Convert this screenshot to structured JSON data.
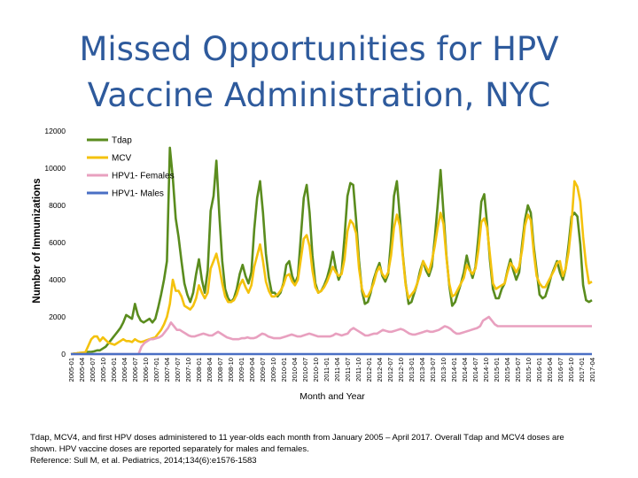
{
  "slide": {
    "title_line1": "Missed Opportunities for HPV",
    "title_line2": "Vaccine Administration, NYC",
    "footer_line1": "Tdap, MCV4, and first HPV doses administered to 11 year-olds each month from January 2005 – April 2017. Overall Tdap and MCV4 doses are",
    "footer_line2": "shown. HPV vaccine doses are reported separately for males and females.",
    "footer_line3": "Reference: Sull M, et al. Pediatrics, 2014;134(6):e1576-1583"
  },
  "chart_data": {
    "type": "line",
    "xlabel": "Month and Year",
    "ylabel": "Number of Immunizations",
    "ylim": [
      0,
      12000
    ],
    "yticks": [
      0,
      2000,
      4000,
      6000,
      8000,
      10000,
      12000
    ],
    "yticklabels": [
      "0",
      "2000",
      "4000",
      "6000",
      "8000",
      "10000",
      "12000"
    ],
    "x_tick_labels": [
      "2005-01",
      "2005-04",
      "2005-07",
      "2005-10",
      "2006-01",
      "2006-04",
      "2006-07",
      "2006-10",
      "2007-01",
      "2007-04",
      "2007-07",
      "2007-10",
      "2008-01",
      "2008-04",
      "2008-07",
      "2008-10",
      "2009-01",
      "2009-04",
      "2009-07",
      "2009-10",
      "2010-01",
      "2010-04",
      "2010-07",
      "2010-10",
      "2011-01",
      "2011-04",
      "2011-07",
      "2011-10",
      "2012-01",
      "2012-04",
      "2012-07",
      "2012-10",
      "2013-01",
      "2013-04",
      "2013-07",
      "2013-10",
      "2014-01",
      "2014-04",
      "2014-07",
      "2014-10",
      "2015-01",
      "2015-04",
      "2015-07",
      "2015-10",
      "2016-01",
      "2016-04",
      "2016-07",
      "2016-10",
      "2017-01",
      "2017-04"
    ],
    "legend": {
      "placement": "top-left"
    },
    "series": [
      {
        "name": "Tdap",
        "color": "#5A8C1E",
        "values": [
          0,
          20,
          40,
          60,
          60,
          80,
          120,
          120,
          150,
          200,
          200,
          300,
          400,
          600,
          800,
          1000,
          1200,
          1400,
          1700,
          2100,
          2000,
          1900,
          2700,
          2100,
          1800,
          1700,
          1800,
          1900,
          1700,
          1900,
          2500,
          3200,
          4000,
          5000,
          11100,
          9500,
          7300,
          6300,
          5000,
          3800,
          3200,
          2800,
          3300,
          4300,
          5100,
          4000,
          3300,
          4500,
          7700,
          8500,
          10400,
          7500,
          5000,
          3500,
          3000,
          2800,
          3000,
          3500,
          4300,
          4800,
          4200,
          3800,
          4400,
          6700,
          8400,
          9300,
          7600,
          5400,
          4100,
          3300,
          3300,
          3100,
          3300,
          3800,
          4800,
          5000,
          4200,
          3800,
          4200,
          6300,
          8400,
          9100,
          7600,
          5300,
          3800,
          3300,
          3400,
          3700,
          4100,
          4700,
          5500,
          4600,
          4000,
          4400,
          6300,
          8500,
          9200,
          9100,
          7200,
          5000,
          3400,
          2700,
          2800,
          3300,
          4000,
          4500,
          4900,
          4200,
          3900,
          4300,
          6100,
          8500,
          9300,
          7400,
          5400,
          3800,
          2700,
          2800,
          3300,
          3800,
          4500,
          5000,
          4500,
          4200,
          4700,
          6200,
          8000,
          9900,
          7600,
          5300,
          3700,
          2600,
          2800,
          3300,
          3800,
          4400,
          5300,
          4600,
          4100,
          4700,
          6300,
          8200,
          8600,
          7000,
          5000,
          3500,
          3000,
          3000,
          3500,
          3800,
          4500,
          5100,
          4500,
          4000,
          4400,
          5900,
          7200,
          8000,
          7600,
          5800,
          4500,
          3200,
          3000,
          3100,
          3600,
          4200,
          4600,
          5000,
          4400,
          4000,
          4600,
          5900,
          7400,
          7600,
          7400,
          5900,
          3700,
          2900,
          2800,
          2900
        ]
      },
      {
        "name": "MCV",
        "color": "#F4C20D",
        "values": [
          0,
          20,
          40,
          60,
          80,
          100,
          450,
          800,
          950,
          950,
          700,
          900,
          750,
          600,
          550,
          500,
          600,
          700,
          800,
          700,
          700,
          650,
          800,
          700,
          650,
          680,
          750,
          800,
          850,
          900,
          1100,
          1300,
          1600,
          2000,
          2700,
          4000,
          3400,
          3400,
          3100,
          2600,
          2500,
          2400,
          2600,
          3000,
          3700,
          3300,
          3000,
          3300,
          4600,
          5000,
          5400,
          4700,
          3800,
          3100,
          2800,
          2800,
          2900,
          3200,
          3700,
          4000,
          3600,
          3300,
          3700,
          4700,
          5300,
          5900,
          5000,
          3900,
          3400,
          3100,
          3100,
          3200,
          3400,
          3700,
          4200,
          4300,
          3900,
          3700,
          4000,
          5100,
          6200,
          6400,
          5800,
          4500,
          3600,
          3300,
          3400,
          3600,
          3900,
          4300,
          4700,
          4400,
          4200,
          4300,
          5100,
          6600,
          7200,
          7000,
          6500,
          4600,
          3500,
          3100,
          3100,
          3400,
          3800,
          4400,
          4700,
          4300,
          4100,
          4400,
          5300,
          6800,
          7500,
          6900,
          5300,
          3700,
          3000,
          3200,
          3400,
          3800,
          4300,
          5000,
          4700,
          4400,
          5000,
          5800,
          6800,
          7600,
          7000,
          5200,
          3800,
          3100,
          3200,
          3500,
          3800,
          4100,
          4800,
          4500,
          4300,
          4600,
          5600,
          7100,
          7300,
          6800,
          5300,
          3800,
          3500,
          3600,
          3700,
          3800,
          4400,
          4900,
          4700,
          4400,
          4700,
          5600,
          6900,
          7500,
          7200,
          5500,
          4200,
          3800,
          3600,
          3600,
          3900,
          4200,
          4500,
          4900,
          5000,
          4200,
          4600,
          5500,
          7000,
          9300,
          9000,
          8200,
          6300,
          4800,
          3800,
          3900
        ]
      },
      {
        "name": "HPV1- Females",
        "color": "#E8A0BF",
        "values": [
          0,
          0,
          0,
          0,
          0,
          0,
          0,
          0,
          0,
          0,
          0,
          0,
          0,
          0,
          0,
          0,
          0,
          0,
          0,
          0,
          0,
          0,
          0,
          0,
          400,
          600,
          700,
          800,
          800,
          850,
          900,
          1000,
          1200,
          1400,
          1700,
          1500,
          1300,
          1300,
          1200,
          1100,
          1000,
          950,
          950,
          1000,
          1050,
          1100,
          1050,
          1000,
          1000,
          1100,
          1200,
          1100,
          1000,
          900,
          850,
          800,
          800,
          800,
          850,
          850,
          900,
          850,
          850,
          900,
          1000,
          1100,
          1050,
          950,
          900,
          850,
          850,
          850,
          900,
          950,
          1000,
          1050,
          1000,
          950,
          950,
          1000,
          1050,
          1100,
          1050,
          1000,
          950,
          950,
          950,
          950,
          950,
          1000,
          1100,
          1050,
          1000,
          1050,
          1100,
          1300,
          1400,
          1300,
          1200,
          1100,
          1000,
          1000,
          1050,
          1100,
          1100,
          1200,
          1300,
          1250,
          1200,
          1200,
          1250,
          1300,
          1350,
          1300,
          1200,
          1100,
          1050,
          1050,
          1100,
          1150,
          1200,
          1250,
          1200,
          1200,
          1250,
          1300,
          1400,
          1500,
          1450,
          1350,
          1200,
          1100,
          1100,
          1150,
          1200,
          1250,
          1300,
          1350,
          1400,
          1500,
          1800,
          1900,
          2000,
          1800,
          1600,
          1500,
          1500,
          1500,
          1500,
          1500,
          1500,
          1500,
          1500,
          1500,
          1500,
          1500,
          1500,
          1500,
          1500,
          1500,
          1500,
          1500,
          1500,
          1500,
          1500,
          1500,
          1500,
          1500,
          1500,
          1500,
          1500,
          1500,
          1500,
          1500,
          1500,
          1500,
          1500,
          1500
        ]
      },
      {
        "name": "HPV1- Males",
        "color": "#4A6FC4",
        "values": [
          0,
          0,
          0,
          0,
          0,
          0,
          0,
          0,
          0,
          0,
          0,
          0,
          0,
          0,
          0,
          0,
          0,
          0,
          0,
          0,
          0,
          0,
          0,
          0,
          0,
          0,
          0,
          0,
          0,
          0,
          0,
          0,
          0,
          0,
          0,
          0,
          0,
          0,
          0,
          0,
          0,
          0,
          0,
          0,
          0,
          0,
          0,
          0,
          0,
          0,
          0,
          0,
          0,
          0,
          0,
          0,
          0,
          0,
          0,
          0,
          0,
          0,
          0,
          0,
          0,
          0,
          0,
          0,
          0,
          0,
          0,
          0,
          0,
          0,
          0,
          0,
          0,
          0,
          0,
          0,
          0,
          0,
          0,
          0,
          0,
          0,
          0,
          0,
          0,
          0,
          0,
          0,
          0,
          0,
          0,
          0,
          0,
          0,
          0,
          0,
          0,
          0,
          0,
          0,
          0,
          0,
          0,
          0,
          0,
          0,
          0,
          0,
          0,
          0,
          0,
          0,
          0,
          0,
          0,
          0,
          0,
          0,
          0,
          0,
          0,
          0,
          0,
          0,
          0,
          0,
          0,
          0,
          0,
          0,
          0,
          0,
          0,
          0,
          0,
          0,
          0,
          0,
          0,
          0,
          0,
          0,
          0,
          0,
          0,
          0,
          0,
          0,
          0,
          0,
          0,
          0,
          0,
          0,
          0,
          0,
          0,
          0,
          0,
          0,
          0,
          0,
          0,
          0,
          0,
          0,
          0,
          0,
          0,
          0,
          0,
          0,
          0,
          0,
          0,
          0
        ]
      }
    ]
  }
}
